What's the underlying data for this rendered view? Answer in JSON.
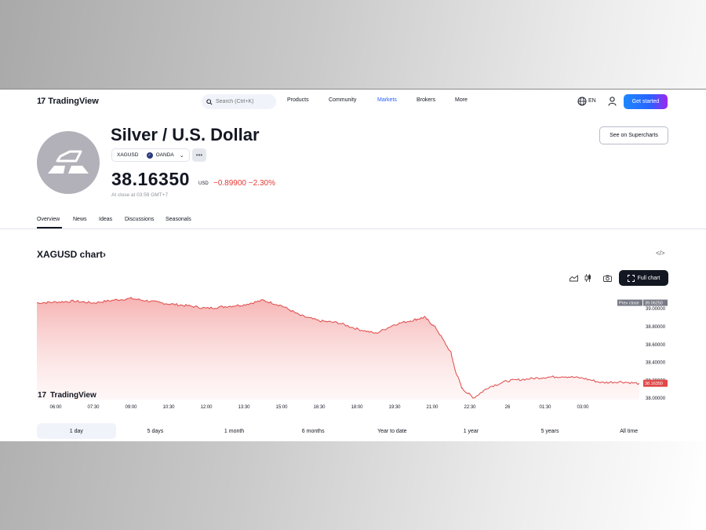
{
  "header": {
    "brand": "TradingView",
    "search_placeholder": "Search (Ctrl+K)",
    "nav": [
      {
        "label": "Products"
      },
      {
        "label": "Community"
      },
      {
        "label": "Markets"
      },
      {
        "label": "Brokers"
      },
      {
        "label": "More"
      }
    ],
    "lang": "EN",
    "cta": "Get started"
  },
  "symbol": {
    "title": "Silver / U.S. Dollar",
    "ticker": "XAGUSD",
    "exchange": "OANDA",
    "price": "38.16350",
    "currency": "USD",
    "change": "−0.89900",
    "change_pct": "−2.30%",
    "closed_note": "At close at 03:59 GMT+7",
    "supercharts": "See on Supercharts"
  },
  "tabs": [
    {
      "label": "Overview"
    },
    {
      "label": "News"
    },
    {
      "label": "Ideas"
    },
    {
      "label": "Discussions"
    },
    {
      "label": "Seasonals"
    }
  ],
  "chart_section": {
    "title": "XAGUSD chart",
    "title_arrow": "›",
    "full_chart": "Full chart",
    "watermark": "TradingView"
  },
  "ranges": [
    {
      "label": "1 day"
    },
    {
      "label": "5 days"
    },
    {
      "label": "1 month"
    },
    {
      "label": "6 months"
    },
    {
      "label": "Year to date"
    },
    {
      "label": "1 year"
    },
    {
      "label": "5 years"
    },
    {
      "label": "All time"
    }
  ],
  "colors": {
    "accent": "#2962ff",
    "negative": "#e53935",
    "line": "#e04848",
    "text": "#131722"
  },
  "chart_data": {
    "type": "area",
    "x_ticks": [
      "06:00",
      "07:30",
      "09:00",
      "10:30",
      "12:00",
      "13:30",
      "15:00",
      "16:30",
      "18:00",
      "19:30",
      "21:00",
      "22:30",
      "26",
      "01:30",
      "03:00"
    ],
    "y_ticks": [
      38.0,
      38.2,
      38.4,
      38.6,
      38.8,
      39.0
    ],
    "ylim": [
      37.98,
      39.12
    ],
    "prev_close_label": "Prev close",
    "prev_close": 39.0625,
    "prev_close_text": "39.06250",
    "last_price": 38.1635,
    "last_price_text": "38.16350",
    "series": [
      {
        "x": [
          0,
          0.5,
          1,
          1.5,
          2,
          2.5,
          3,
          3.5,
          4,
          4.5,
          5,
          5.5,
          6,
          6.5,
          7,
          7.5,
          8,
          8.5,
          9,
          9.5,
          10,
          10.3,
          10.6,
          11,
          11.1,
          11.3,
          11.6,
          12,
          12.5,
          13,
          13.5,
          14,
          14.5,
          15,
          15.5,
          16
        ],
        "values": [
          39.06,
          39.07,
          39.08,
          39.06,
          39.09,
          39.11,
          39.08,
          39.05,
          39.03,
          39.0,
          39.02,
          39.04,
          39.09,
          39.03,
          38.92,
          38.86,
          38.84,
          38.77,
          38.72,
          38.82,
          38.87,
          38.9,
          38.78,
          38.5,
          38.32,
          38.1,
          38.0,
          38.12,
          38.19,
          38.21,
          38.23,
          38.24,
          38.22,
          38.17,
          38.18,
          38.16
        ]
      }
    ]
  }
}
